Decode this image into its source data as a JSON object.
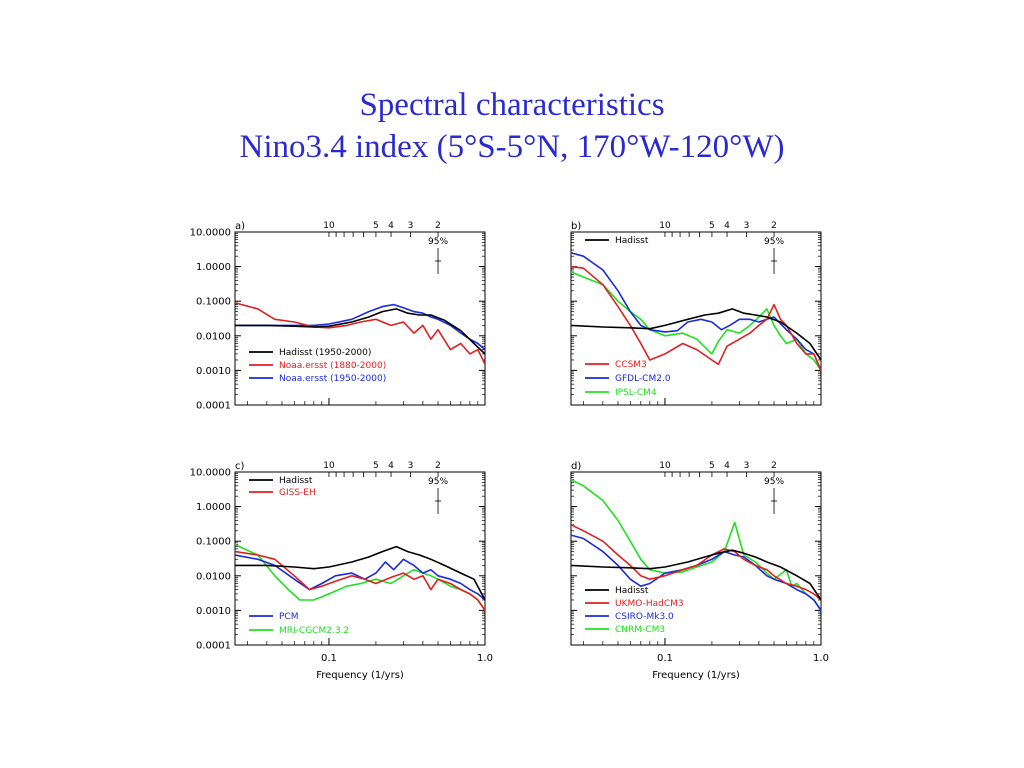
{
  "title": {
    "line1": "Spectral characteristics",
    "line2": "Nino3.4 index (5°S-5°N, 170°W-120°W)"
  },
  "colors": {
    "title": "#2a2ad0",
    "black": "#000000",
    "red": "#e02020",
    "blue": "#1a2ae0",
    "green": "#20e020"
  },
  "chart_data": [
    {
      "type": "line",
      "panel_label": "a)",
      "xscale": "log",
      "yscale": "log",
      "xlim": [
        0.025,
        1.0
      ],
      "ylim": [
        0.0001,
        10
      ],
      "yticks": [
        "10.0000",
        "1.0000",
        "0.1000",
        "0.0100",
        "0.0010",
        "0.0001"
      ],
      "xticks": [],
      "xlabel": "",
      "top_period_ticks": [
        "10",
        "5",
        "4",
        "3",
        "2"
      ],
      "significance_label": "95%",
      "legend_position": "bottom-left",
      "series": [
        {
          "name": "Hadisst (1950-2000)",
          "color": "black",
          "x": [
            0.025,
            0.04,
            0.06,
            0.08,
            0.1,
            0.14,
            0.18,
            0.22,
            0.27,
            0.32,
            0.38,
            0.45,
            0.55,
            0.7,
            0.85,
            1.0
          ],
          "y": [
            0.02,
            0.02,
            0.019,
            0.018,
            0.019,
            0.025,
            0.035,
            0.05,
            0.06,
            0.045,
            0.04,
            0.04,
            0.028,
            0.014,
            0.006,
            0.003
          ]
        },
        {
          "name": "Noaa.ersst (1880-2000)",
          "color": "red",
          "x": [
            0.025,
            0.035,
            0.045,
            0.06,
            0.08,
            0.1,
            0.13,
            0.16,
            0.2,
            0.25,
            0.3,
            0.35,
            0.4,
            0.45,
            0.5,
            0.6,
            0.7,
            0.8,
            0.9,
            1.0
          ],
          "y": [
            0.09,
            0.06,
            0.03,
            0.025,
            0.018,
            0.017,
            0.02,
            0.025,
            0.03,
            0.02,
            0.025,
            0.012,
            0.02,
            0.008,
            0.015,
            0.004,
            0.006,
            0.003,
            0.004,
            0.0015
          ]
        },
        {
          "name": "Noaa.ersst (1950-2000)",
          "color": "blue",
          "x": [
            0.025,
            0.04,
            0.06,
            0.08,
            0.1,
            0.14,
            0.18,
            0.22,
            0.26,
            0.3,
            0.35,
            0.4,
            0.45,
            0.5,
            0.6,
            0.7,
            0.8,
            0.9,
            1.0
          ],
          "y": [
            0.02,
            0.02,
            0.02,
            0.02,
            0.022,
            0.03,
            0.05,
            0.07,
            0.08,
            0.065,
            0.05,
            0.045,
            0.035,
            0.03,
            0.02,
            0.012,
            0.008,
            0.006,
            0.004
          ]
        }
      ]
    },
    {
      "type": "line",
      "panel_label": "b)",
      "xscale": "log",
      "yscale": "log",
      "xlim": [
        0.025,
        1.0
      ],
      "ylim": [
        0.0001,
        10
      ],
      "yticks": [],
      "xticks": [],
      "xlabel": "",
      "top_period_ticks": [
        "10",
        "5",
        "4",
        "3",
        "2"
      ],
      "significance_label": "95%",
      "legend_position": "top-left and bottom-left",
      "series": [
        {
          "name": "Hadisst",
          "color": "black",
          "x": [
            0.025,
            0.04,
            0.06,
            0.08,
            0.1,
            0.14,
            0.18,
            0.22,
            0.27,
            0.32,
            0.38,
            0.45,
            0.55,
            0.7,
            0.85,
            1.0
          ],
          "y": [
            0.02,
            0.018,
            0.017,
            0.016,
            0.02,
            0.03,
            0.04,
            0.045,
            0.06,
            0.045,
            0.04,
            0.035,
            0.025,
            0.012,
            0.006,
            0.002
          ]
        },
        {
          "name": "CCSM3",
          "color": "red",
          "x": [
            0.025,
            0.03,
            0.04,
            0.05,
            0.06,
            0.07,
            0.08,
            0.1,
            0.13,
            0.16,
            0.2,
            0.22,
            0.25,
            0.3,
            0.35,
            0.4,
            0.45,
            0.5,
            0.55,
            0.6,
            0.7,
            0.8,
            0.9,
            1.0
          ],
          "y": [
            1.0,
            0.9,
            0.3,
            0.07,
            0.02,
            0.006,
            0.002,
            0.003,
            0.006,
            0.004,
            0.002,
            0.0015,
            0.005,
            0.008,
            0.012,
            0.02,
            0.03,
            0.08,
            0.03,
            0.02,
            0.006,
            0.003,
            0.003,
            0.001
          ]
        },
        {
          "name": "GFDL-CM2.0",
          "color": "blue",
          "x": [
            0.025,
            0.03,
            0.04,
            0.05,
            0.06,
            0.07,
            0.08,
            0.1,
            0.12,
            0.14,
            0.17,
            0.2,
            0.23,
            0.26,
            0.3,
            0.35,
            0.4,
            0.45,
            0.5,
            0.6,
            0.7,
            0.8,
            0.9,
            1.0
          ],
          "y": [
            2.5,
            2.0,
            0.8,
            0.2,
            0.05,
            0.02,
            0.015,
            0.013,
            0.014,
            0.025,
            0.03,
            0.025,
            0.015,
            0.02,
            0.03,
            0.03,
            0.025,
            0.03,
            0.035,
            0.015,
            0.008,
            0.004,
            0.003,
            0.001
          ]
        },
        {
          "name": "IPSL-CM4",
          "color": "green",
          "x": [
            0.025,
            0.03,
            0.04,
            0.05,
            0.06,
            0.07,
            0.08,
            0.1,
            0.13,
            0.16,
            0.2,
            0.22,
            0.25,
            0.3,
            0.35,
            0.4,
            0.45,
            0.5,
            0.55,
            0.6,
            0.7,
            0.8,
            0.9,
            1.0
          ],
          "y": [
            0.7,
            0.5,
            0.3,
            0.1,
            0.05,
            0.03,
            0.015,
            0.01,
            0.012,
            0.008,
            0.003,
            0.007,
            0.015,
            0.012,
            0.02,
            0.035,
            0.06,
            0.02,
            0.01,
            0.006,
            0.008,
            0.003,
            0.002,
            0.001
          ]
        }
      ]
    },
    {
      "type": "line",
      "panel_label": "c)",
      "xscale": "log",
      "yscale": "log",
      "xlim": [
        0.025,
        1.0
      ],
      "ylim": [
        0.0001,
        10
      ],
      "yticks": [
        "10.0000",
        "1.0000",
        "0.1000",
        "0.0100",
        "0.0010",
        "0.0001"
      ],
      "xticks": [
        "0.1",
        "1.0"
      ],
      "xlabel": "Frequency (1/yrs)",
      "top_period_ticks": [
        "10",
        "5",
        "4",
        "3",
        "2"
      ],
      "significance_label": "95%",
      "legend_position": "top-left and bottom-left",
      "series": [
        {
          "name": "Hadisst",
          "color": "black",
          "x": [
            0.025,
            0.04,
            0.06,
            0.08,
            0.1,
            0.14,
            0.18,
            0.22,
            0.27,
            0.32,
            0.38,
            0.45,
            0.55,
            0.7,
            0.85,
            1.0
          ],
          "y": [
            0.02,
            0.02,
            0.018,
            0.016,
            0.018,
            0.025,
            0.035,
            0.05,
            0.07,
            0.05,
            0.04,
            0.03,
            0.02,
            0.012,
            0.008,
            0.002
          ]
        },
        {
          "name": "GISS-EH",
          "color": "red",
          "x": [
            0.025,
            0.035,
            0.045,
            0.06,
            0.075,
            0.09,
            0.11,
            0.14,
            0.17,
            0.2,
            0.25,
            0.3,
            0.35,
            0.4,
            0.45,
            0.5,
            0.6,
            0.7,
            0.8,
            0.9,
            1.0
          ],
          "y": [
            0.05,
            0.04,
            0.03,
            0.01,
            0.004,
            0.005,
            0.007,
            0.01,
            0.008,
            0.006,
            0.009,
            0.012,
            0.008,
            0.01,
            0.004,
            0.008,
            0.006,
            0.004,
            0.003,
            0.002,
            0.001
          ]
        },
        {
          "name": "PCM",
          "color": "blue",
          "x": [
            0.025,
            0.035,
            0.045,
            0.06,
            0.075,
            0.09,
            0.11,
            0.14,
            0.17,
            0.2,
            0.23,
            0.26,
            0.3,
            0.35,
            0.4,
            0.45,
            0.5,
            0.6,
            0.7,
            0.8,
            0.9,
            1.0
          ],
          "y": [
            0.04,
            0.03,
            0.02,
            0.008,
            0.004,
            0.006,
            0.01,
            0.012,
            0.008,
            0.012,
            0.025,
            0.015,
            0.03,
            0.02,
            0.012,
            0.015,
            0.01,
            0.008,
            0.006,
            0.004,
            0.003,
            0.002
          ]
        },
        {
          "name": "MRI-CGCM2.3.2",
          "color": "green",
          "x": [
            0.025,
            0.035,
            0.045,
            0.055,
            0.065,
            0.08,
            0.1,
            0.13,
            0.16,
            0.2,
            0.25,
            0.3,
            0.35,
            0.4,
            0.45,
            0.5,
            0.6,
            0.7,
            0.8,
            0.9,
            1.0
          ],
          "y": [
            0.08,
            0.04,
            0.01,
            0.004,
            0.002,
            0.002,
            0.003,
            0.005,
            0.006,
            0.008,
            0.006,
            0.01,
            0.015,
            0.012,
            0.01,
            0.008,
            0.005,
            0.004,
            0.003,
            0.002,
            0.001
          ]
        }
      ]
    },
    {
      "type": "line",
      "panel_label": "d)",
      "xscale": "log",
      "yscale": "log",
      "xlim": [
        0.025,
        1.0
      ],
      "ylim": [
        0.0001,
        10
      ],
      "yticks": [],
      "xticks": [
        "0.1",
        "1.0"
      ],
      "xlabel": "Frequency (1/yrs)",
      "top_period_ticks": [
        "10",
        "5",
        "4",
        "3",
        "2"
      ],
      "significance_label": "95%",
      "legend_position": "bottom-left",
      "series": [
        {
          "name": "Hadisst",
          "color": "black",
          "x": [
            0.025,
            0.04,
            0.06,
            0.08,
            0.1,
            0.14,
            0.18,
            0.22,
            0.27,
            0.32,
            0.38,
            0.45,
            0.55,
            0.7,
            0.85,
            1.0
          ],
          "y": [
            0.02,
            0.018,
            0.017,
            0.016,
            0.018,
            0.025,
            0.035,
            0.045,
            0.055,
            0.045,
            0.035,
            0.025,
            0.018,
            0.01,
            0.006,
            0.002
          ]
        },
        {
          "name": "UKMO-HadCM3",
          "color": "red",
          "x": [
            0.025,
            0.03,
            0.04,
            0.05,
            0.06,
            0.07,
            0.08,
            0.1,
            0.13,
            0.16,
            0.2,
            0.24,
            0.28,
            0.32,
            0.38,
            0.45,
            0.5,
            0.6,
            0.7,
            0.8,
            0.9,
            1.0
          ],
          "y": [
            0.3,
            0.2,
            0.1,
            0.04,
            0.02,
            0.01,
            0.008,
            0.01,
            0.015,
            0.02,
            0.04,
            0.06,
            0.05,
            0.03,
            0.02,
            0.015,
            0.01,
            0.006,
            0.005,
            0.004,
            0.003,
            0.002
          ]
        },
        {
          "name": "CSIRO-Mk3.0",
          "color": "blue",
          "x": [
            0.025,
            0.03,
            0.04,
            0.05,
            0.06,
            0.07,
            0.08,
            0.1,
            0.13,
            0.16,
            0.2,
            0.24,
            0.28,
            0.32,
            0.38,
            0.45,
            0.5,
            0.6,
            0.7,
            0.8,
            0.9,
            1.0
          ],
          "y": [
            0.15,
            0.12,
            0.05,
            0.02,
            0.008,
            0.005,
            0.006,
            0.012,
            0.015,
            0.02,
            0.03,
            0.05,
            0.04,
            0.035,
            0.02,
            0.01,
            0.008,
            0.006,
            0.004,
            0.003,
            0.002,
            0.001
          ]
        },
        {
          "name": "CNRM-CM3",
          "color": "green",
          "x": [
            0.025,
            0.03,
            0.04,
            0.05,
            0.06,
            0.07,
            0.08,
            0.1,
            0.13,
            0.16,
            0.2,
            0.24,
            0.28,
            0.32,
            0.38,
            0.45,
            0.5,
            0.6,
            0.65,
            0.7,
            0.8,
            0.9,
            1.0
          ],
          "y": [
            6.0,
            4.0,
            1.5,
            0.4,
            0.1,
            0.03,
            0.015,
            0.012,
            0.013,
            0.018,
            0.025,
            0.05,
            0.35,
            0.04,
            0.025,
            0.012,
            0.008,
            0.015,
            0.005,
            0.006,
            0.003,
            0.002,
            0.001
          ]
        }
      ]
    }
  ]
}
